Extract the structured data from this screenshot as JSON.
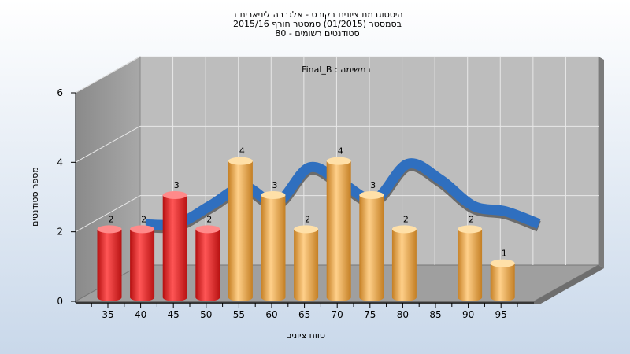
{
  "chart_data": {
    "type": "bar",
    "title_lines": [
      "היסטוגרמת ציונים בקורס - אלגברה ליניארית ב",
      "בסמסטר  (01/2015)  סמסטר חורף 2015/16",
      "סטודנטים רשומים - 80"
    ],
    "annotation": "במשימה : Final_B",
    "xlabel": "טווח ציונים",
    "ylabel": "מספר סטודנטים",
    "ylim": [
      0,
      6
    ],
    "yticks": [
      "0",
      "2",
      "4",
      "6"
    ],
    "x_ticks": [
      "35",
      "40",
      "45",
      "50",
      "55",
      "60",
      "65",
      "70",
      "75",
      "80",
      "85",
      "90",
      "95"
    ],
    "bars": [
      {
        "x": 35,
        "value": 2,
        "label": "2",
        "color": "red"
      },
      {
        "x": 40,
        "value": 2,
        "label": "2",
        "color": "red"
      },
      {
        "x": 45,
        "value": 3,
        "label": "3",
        "color": "red"
      },
      {
        "x": 50,
        "value": 2,
        "label": "2",
        "color": "red"
      },
      {
        "x": 55,
        "value": 4,
        "label": "4",
        "color": "gold"
      },
      {
        "x": 60,
        "value": 3,
        "label": "3",
        "color": "gold"
      },
      {
        "x": 65,
        "value": 2,
        "label": "2",
        "color": "gold"
      },
      {
        "x": 70,
        "value": 4,
        "label": "4",
        "color": "gold"
      },
      {
        "x": 75,
        "value": 3,
        "label": "3",
        "color": "gold"
      },
      {
        "x": 80,
        "value": 2,
        "label": "2",
        "color": "gold"
      },
      {
        "x": 90,
        "value": 2,
        "label": "2",
        "color": "gold"
      },
      {
        "x": 95,
        "value": 1,
        "label": "1",
        "color": "gold"
      }
    ],
    "trend_line": {
      "x": [
        35,
        40,
        45,
        50,
        55,
        60,
        65,
        70,
        75,
        80,
        85,
        90,
        95
      ],
      "y": [
        2.0,
        2.0,
        2.5,
        3.0,
        2.5,
        3.5,
        3.0,
        2.5,
        3.5,
        3.0,
        2.2,
        2.0,
        1.6
      ]
    },
    "grid": true,
    "colors": {
      "red": "#e52222",
      "gold": "#e7a23f",
      "trend": "#2f6fbf",
      "trend_shadow": "#6b6b6b"
    }
  }
}
